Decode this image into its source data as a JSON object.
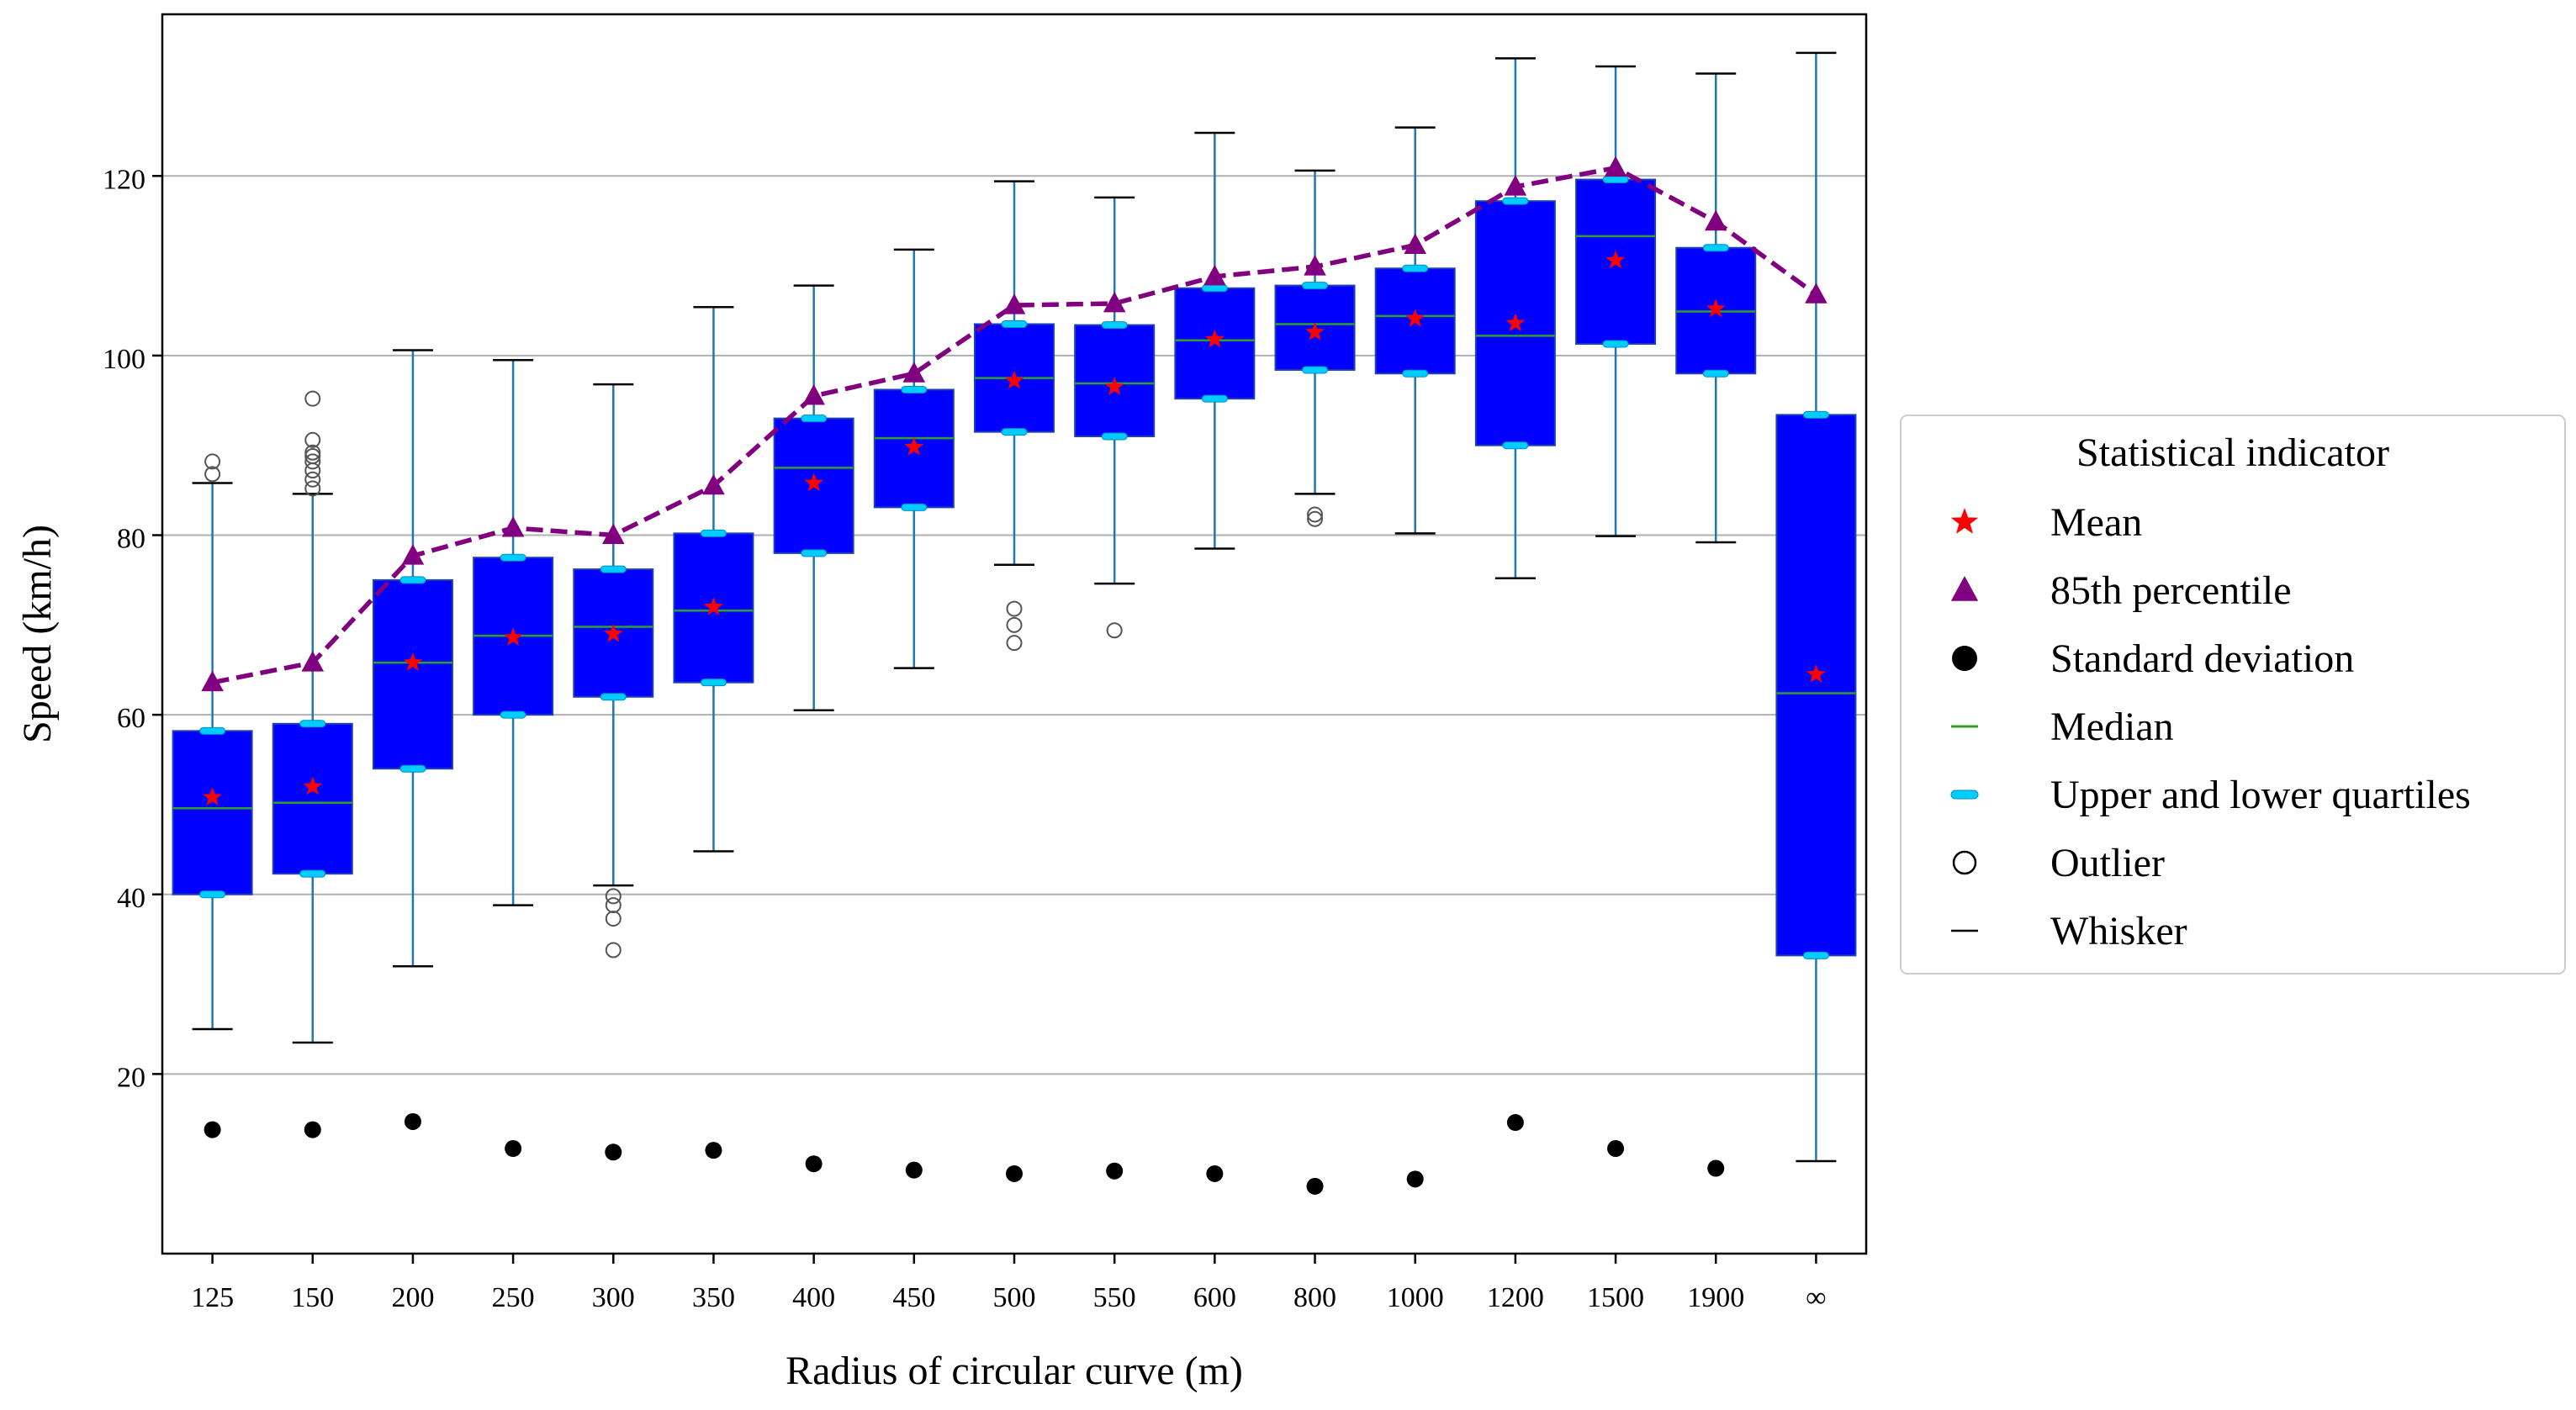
{
  "chart_data": {
    "type": "box",
    "title": "",
    "xlabel": "Radius of circular curve (m)",
    "ylabel": "Speed (km/h)",
    "ylim": [
      0,
      138
    ],
    "yticks": [
      20,
      40,
      60,
      80,
      100,
      120
    ],
    "grid": "horizontal",
    "legend_position": "right",
    "legend": {
      "title": "Statistical indicator",
      "entries": [
        {
          "key": "mean",
          "label": "Mean"
        },
        {
          "key": "p85",
          "label": "85th percentile"
        },
        {
          "key": "sd",
          "label": "Standard deviation"
        },
        {
          "key": "median",
          "label": "Median"
        },
        {
          "key": "quartiles",
          "label": "Upper and lower quartiles"
        },
        {
          "key": "outlier",
          "label": "Outlier"
        },
        {
          "key": "whisker",
          "label": "Whisker"
        }
      ]
    },
    "categories": [
      "125",
      "150",
      "200",
      "250",
      "300",
      "350",
      "400",
      "450",
      "500",
      "550",
      "600",
      "800",
      "1000",
      "1200",
      "1500",
      "1900",
      "∞"
    ],
    "whisker_low": [
      25,
      23.5,
      32,
      38.8,
      41,
      44.8,
      60.5,
      65.2,
      76.7,
      74.6,
      78.5,
      84.6,
      80.2,
      75.2,
      79.9,
      79.2,
      10.3
    ],
    "q1": [
      40,
      42.3,
      54,
      60,
      62,
      63.6,
      78,
      83.1,
      91.5,
      91,
      95.2,
      98.4,
      98,
      90,
      101.3,
      98,
      33.2
    ],
    "median": [
      49.6,
      50.2,
      65.8,
      68.8,
      69.8,
      71.6,
      87.5,
      90.8,
      97.5,
      96.9,
      101.7,
      103.5,
      104.4,
      102.2,
      113.3,
      104.9,
      62.4
    ],
    "q3": [
      58.2,
      59,
      75,
      77.5,
      76.2,
      80.2,
      93,
      96.2,
      103.5,
      103.4,
      107.5,
      107.8,
      109.7,
      117.2,
      119.6,
      112,
      93.4
    ],
    "whisker_high": [
      85.8,
      84.6,
      100.6,
      99.5,
      96.8,
      105.4,
      107.8,
      111.8,
      119.4,
      117.6,
      124.8,
      120.6,
      125.4,
      133.1,
      132.2,
      131.4,
      133.7
    ],
    "mean": [
      50.8,
      52,
      65.8,
      68.6,
      69,
      72,
      85.8,
      89.8,
      97.2,
      96.5,
      101.8,
      102.6,
      104.1,
      103.6,
      110.6,
      105.2,
      64.5
    ],
    "p85": [
      63.6,
      65.8,
      77.7,
      80.8,
      80,
      85.5,
      95.5,
      98,
      105.6,
      105.8,
      108.8,
      109.9,
      112.3,
      118.8,
      120.9,
      114.9,
      106.8
    ],
    "std_dev": [
      13.8,
      13.8,
      14.7,
      11.7,
      11.3,
      11.5,
      10,
      9.3,
      8.9,
      9.2,
      8.9,
      7.5,
      8.3,
      14.6,
      11.7,
      9.5,
      null
    ],
    "outliers": [
      [
        86.8,
        88.2
      ],
      [
        85.2,
        86.2,
        87.2,
        88.2,
        88.8,
        89.2,
        90.6,
        95.2
      ],
      [],
      [],
      [
        33.8,
        37.3,
        38.8,
        39.8
      ],
      [],
      [],
      [],
      [
        68,
        70,
        71.8
      ],
      [
        69.4
      ],
      [],
      [
        81.8,
        82.3
      ],
      [],
      [],
      [],
      [],
      []
    ],
    "colors": {
      "box_fill": "#0000ff",
      "whisker": "#1f77b4",
      "cap": "#000000",
      "median": "#2ca02c",
      "quartile_marker": "#00ccff",
      "mean_marker": "#ff0000",
      "p85_line": "#800080",
      "std_marker": "#000000",
      "outlier": "#555555",
      "grid": "#b0b0b0"
    }
  }
}
